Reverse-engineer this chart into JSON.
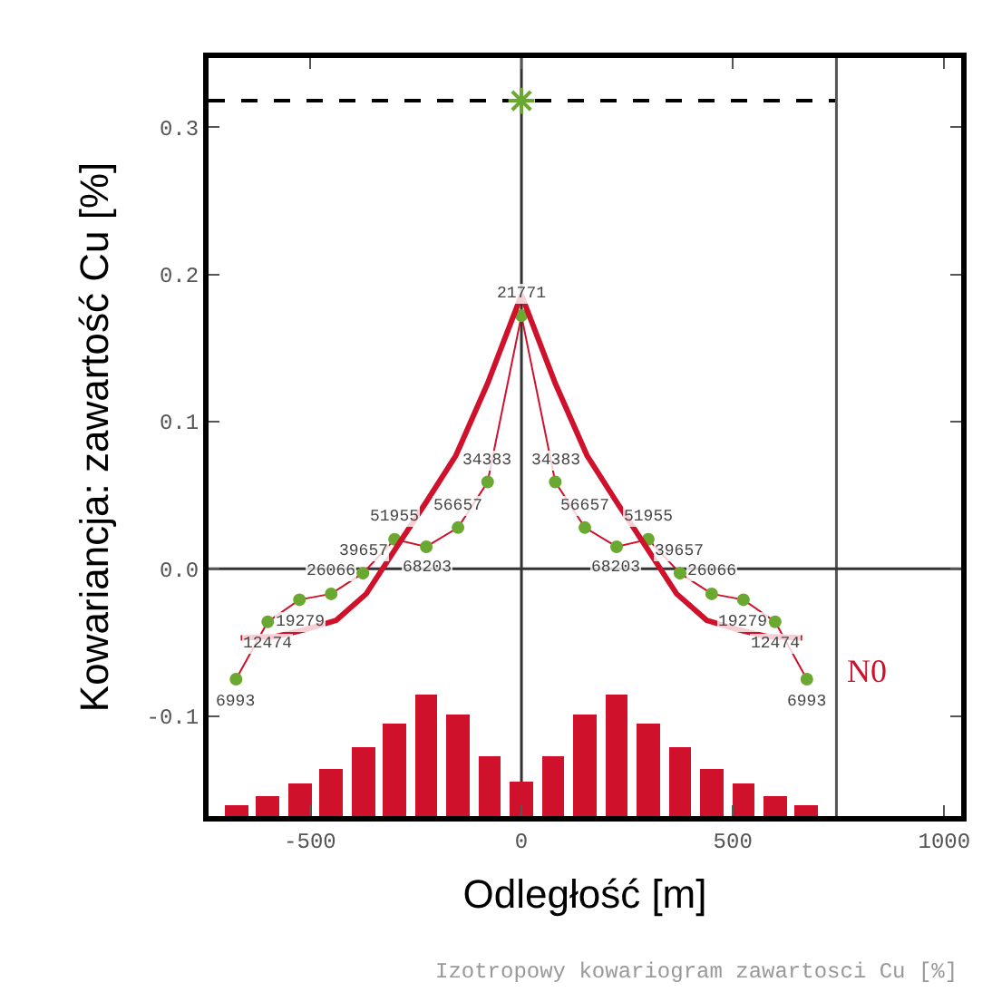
{
  "chart_data": {
    "type": "line",
    "xlabel": "Odległość [m]",
    "ylabel": "Kowariancja: zawartość Cu [%]",
    "annotations": [
      {
        "text": "N0",
        "x": 760,
        "y": -0.07
      },
      "Izotropowy kowariogram zawartosci Cu [%]",
      {
        "text": "6993",
        "x": -675,
        "y": -0.075
      },
      {
        "text": "12474",
        "x": -600,
        "y": -0.036
      },
      {
        "text": "19279",
        "x": -525,
        "y": -0.021
      },
      {
        "text": "26066",
        "x": -450,
        "y": -0.017
      },
      {
        "text": "39657",
        "x": -375,
        "y": -0.003
      },
      {
        "text": "51955",
        "x": -300,
        "y": 0.02
      },
      {
        "text": "68203",
        "x": -225,
        "y": 0.015
      },
      {
        "text": "56657",
        "x": -150,
        "y": 0.028
      },
      {
        "text": "34383",
        "x": -80,
        "y": 0.059
      },
      {
        "text": "21771",
        "x": 0,
        "y": 0.172
      },
      {
        "text": "34383",
        "x": 80,
        "y": 0.059
      },
      {
        "text": "56657",
        "x": 150,
        "y": 0.028
      },
      {
        "text": "68203",
        "x": 225,
        "y": 0.015
      },
      {
        "text": "51955",
        "x": 300,
        "y": 0.02
      },
      {
        "text": "39657",
        "x": 375,
        "y": -0.003
      },
      {
        "text": "26066",
        "x": 450,
        "y": -0.017
      },
      {
        "text": "19279",
        "x": 525,
        "y": -0.021
      },
      {
        "text": "12474",
        "x": 600,
        "y": -0.036
      },
      {
        "text": "6993",
        "x": 675,
        "y": -0.075
      }
    ],
    "xlim": [
      -740,
      1040
    ],
    "xticks": [
      -500,
      0,
      500,
      1000
    ],
    "ylim": [
      -0.168,
      0.347
    ],
    "yticks": [
      {
        "value": -0.1,
        "label": "-0.1"
      },
      {
        "value": 0,
        "label": "0.0"
      },
      {
        "value": 0.1,
        "label": "0.1"
      },
      {
        "value": 0.2,
        "label": "0.2"
      },
      {
        "value": 0.3,
        "label": "0.3"
      }
    ],
    "ref_lines": [
      {
        "axis": "y",
        "value": 0.318,
        "color": "#000000",
        "line_style": "dashed"
      },
      {
        "axis": "x",
        "value": 745,
        "color": "#555555",
        "line_style": "solid"
      },
      {
        "axis": "x",
        "value": 0,
        "color": "#333333",
        "line_style": "solid"
      },
      {
        "axis": "y",
        "value": 0,
        "color": "#333333",
        "line_style": "solid"
      }
    ],
    "series": [
      {
        "type": "bar",
        "color": "#d0112b",
        "x": [
          -675,
          -600,
          -525,
          -450,
          -375,
          -300,
          -225,
          -150,
          -75,
          0,
          75,
          150,
          225,
          300,
          375,
          450,
          525,
          600,
          675
        ],
        "base": [
          -0.168,
          -0.168,
          -0.168,
          -0.168,
          -0.168,
          -0.168,
          -0.168,
          -0.168,
          -0.168,
          -0.168,
          -0.168,
          -0.168,
          -0.168,
          -0.168,
          -0.168,
          -0.168,
          -0.168,
          -0.168,
          -0.168
        ],
        "values": [
          0.007,
          0.013,
          0.022,
          0.032,
          0.047,
          0.063,
          0.083,
          0.069,
          0.041,
          0.024,
          0.041,
          0.069,
          0.083,
          0.063,
          0.047,
          0.032,
          0.022,
          0.013,
          0.007
        ]
      },
      {
        "color": "#d0112b",
        "colors": [
          "#6aa832",
          "#6aa832",
          "#6aa832",
          "#6aa832",
          "#6aa832",
          "#6aa832",
          "#6aa832",
          "#6aa832",
          "#6aa832",
          "#6aa832",
          "#6aa832",
          "#6aa832",
          "#6aa832",
          "#6aa832",
          "#6aa832",
          "#6aa832",
          "#6aa832",
          "#6aa832",
          "#6aa832"
        ],
        "line_style": "solid",
        "marker": "circle",
        "x": [
          -675,
          -600,
          -525,
          -450,
          -375,
          -300,
          -225,
          -150,
          -80,
          0,
          80,
          150,
          225,
          300,
          375,
          450,
          525,
          600,
          675
        ],
        "values": [
          -0.075,
          -0.036,
          -0.021,
          -0.017,
          -0.003,
          0.02,
          0.015,
          0.028,
          0.059,
          0.172,
          0.059,
          0.028,
          0.015,
          0.02,
          -0.003,
          -0.017,
          -0.021,
          -0.036,
          -0.075
        ]
      },
      {
        "color": "#d0112b",
        "line_style": "solid",
        "marker": "none",
        "x": [
          -664,
          -580,
          -508,
          -438,
          -367,
          -297,
          -226,
          -155,
          -80,
          0,
          80,
          155,
          226,
          297,
          367,
          438,
          508,
          580,
          664
        ],
        "values": [
          -0.047,
          -0.046,
          -0.041,
          -0.035,
          -0.017,
          0.014,
          0.045,
          0.077,
          0.126,
          0.186,
          0.126,
          0.077,
          0.045,
          0.014,
          -0.017,
          -0.035,
          -0.041,
          -0.046,
          -0.047
        ]
      },
      {
        "type": "scatter",
        "color": "#6aa832",
        "marker": "cross",
        "x": [
          0
        ],
        "values": [
          0.318
        ]
      }
    ]
  }
}
